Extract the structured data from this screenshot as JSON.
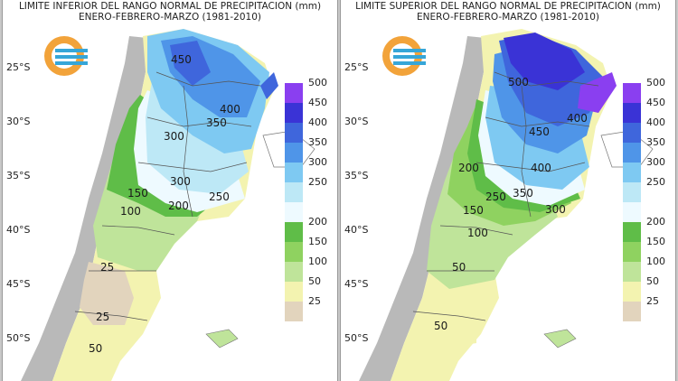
{
  "panels": [
    {
      "title_line1": "LIMITE INFERIOR DEL RANGO NORMAL DE PRECIPITACION (mm)",
      "title_line2": "ENERO-FEBRERO-MARZO (1981-2010)",
      "contour_labels": [
        "450",
        "400",
        "350",
        "300",
        "300",
        "250",
        "200",
        "150",
        "100",
        "25",
        "25",
        "50"
      ],
      "lat_labels": [
        "25°S",
        "30°S",
        "35°S",
        "40°S",
        "45°S",
        "50°S"
      ]
    },
    {
      "title_line1": "LIMITE SUPERIOR DEL RANGO NORMAL DE PRECIPITACION (mm)",
      "title_line2": "ENERO-FEBRERO-MARZO (1981-2010)",
      "contour_labels": [
        "500",
        "400",
        "450",
        "400",
        "350",
        "300",
        "250",
        "200",
        "150",
        "100",
        "50",
        "50"
      ],
      "lat_labels": [
        "25°S",
        "30°S",
        "35°S",
        "40°S",
        "45°S",
        "50°S"
      ]
    }
  ],
  "legend": [
    {
      "label": "500",
      "color": "#8a3ff0"
    },
    {
      "label": "450",
      "color": "#3a33d6"
    },
    {
      "label": "400",
      "color": "#3f66dc"
    },
    {
      "label": "350",
      "color": "#4f95e8"
    },
    {
      "label": "300",
      "color": "#7ec9f2"
    },
    {
      "label": "250",
      "color": "#bde8f6"
    },
    {
      "label": "",
      "color": "#eefaff"
    },
    {
      "label": "200",
      "color": "#5fbd48"
    },
    {
      "label": "150",
      "color": "#8fd260"
    },
    {
      "label": "100",
      "color": "#bfe49a"
    },
    {
      "label": "50",
      "color": "#f3f3b0"
    },
    {
      "label": "25",
      "color": "#e2d4bd"
    }
  ]
}
